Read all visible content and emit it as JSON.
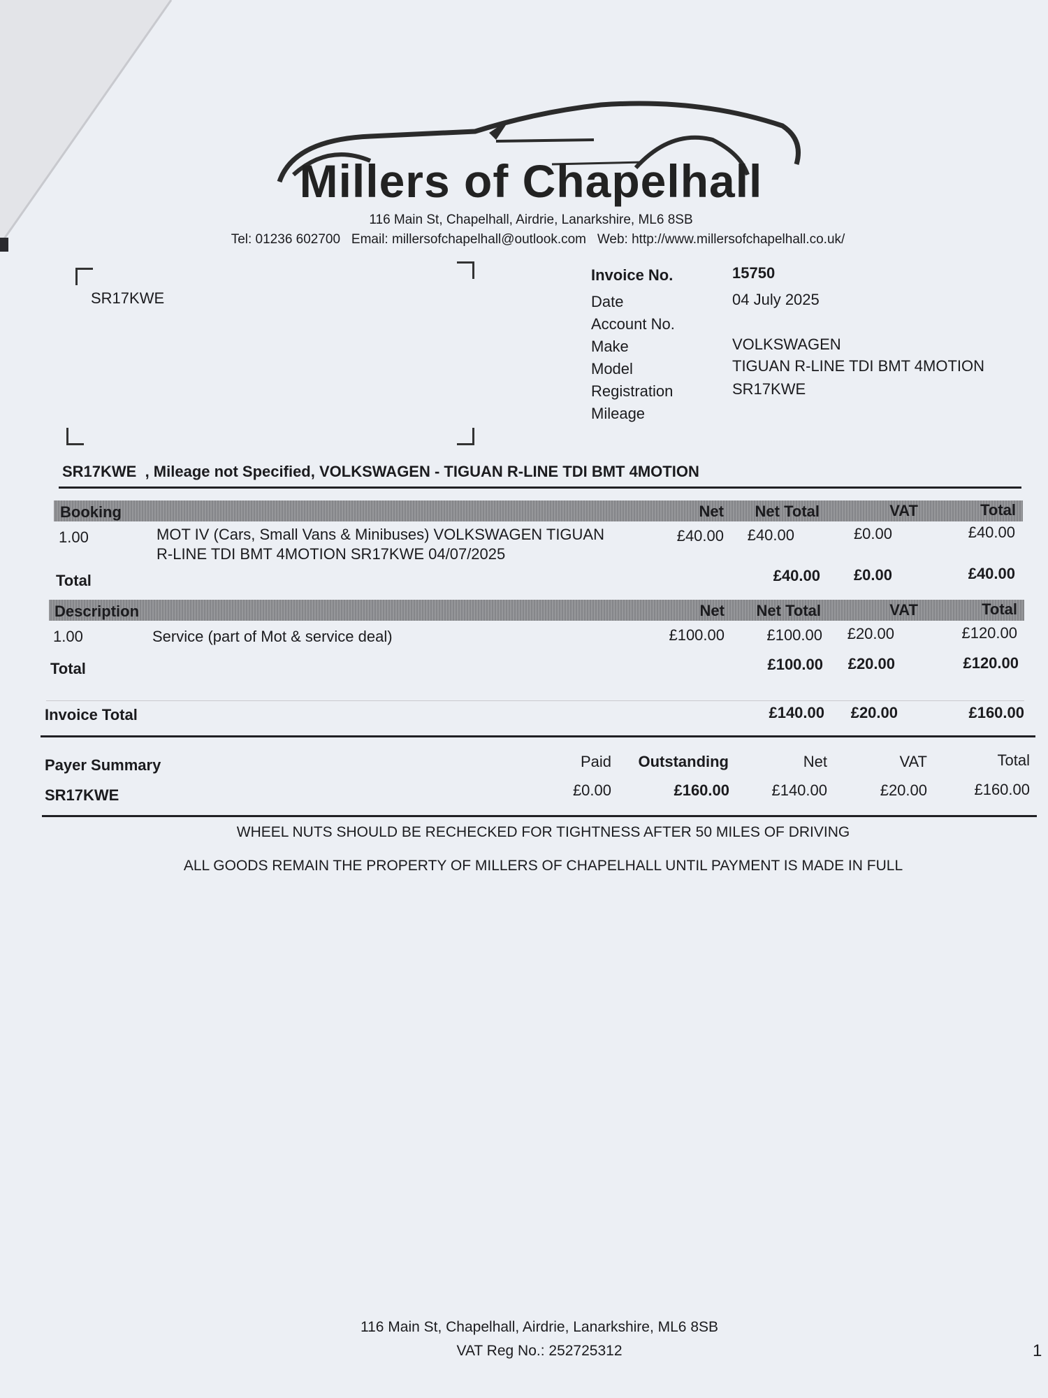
{
  "company": {
    "logo_text": "Millers of Chapelhall",
    "address": "116 Main St, Chapelhall, Airdrie, Lanarkshire, ML6 8SB",
    "contact": "Tel: 01236 602700   Email: millersofchapelhall@outlook.com   Web: http://www.millersofchapelhall.co.uk/"
  },
  "recipient": "SR17KWE",
  "details": [
    {
      "label": "Invoice No.",
      "value": "15750"
    },
    {
      "label": "Date",
      "value": "04 July 2025"
    },
    {
      "label": "Account No.",
      "value": ""
    },
    {
      "label": "Make",
      "value": "VOLKSWAGEN"
    },
    {
      "label": "Model",
      "value": "TIGUAN R-LINE TDI BMT 4MOTION"
    },
    {
      "label": "Registration",
      "value": "SR17KWE"
    },
    {
      "label": "Mileage",
      "value": ""
    }
  ],
  "vehicle_summary": "SR17KWE  , Mileage not Specified, VOLKSWAGEN - TIGUAN R-LINE TDI BMT 4MOTION",
  "booking": {
    "headers": [
      "Booking",
      "Net",
      "Net Total",
      "VAT",
      "Total"
    ],
    "row": {
      "qty": "1.00",
      "desc1": "MOT IV (Cars, Small Vans & Minibuses) VOLKSWAGEN TIGUAN",
      "desc2": "R-LINE TDI BMT 4MOTION SR17KWE 04/07/2025",
      "net": "£40.00",
      "net_total": "£40.00",
      "vat": "£0.00",
      "total": "£40.00"
    },
    "total": {
      "label": "Total",
      "net_total": "£40.00",
      "vat": "£0.00",
      "total": "£40.00"
    }
  },
  "description": {
    "headers": [
      "Description",
      "Net",
      "Net Total",
      "VAT",
      "Total"
    ],
    "row": {
      "qty": "1.00",
      "desc": "Service (part of Mot & service deal)",
      "net": "£100.00",
      "net_total": "£100.00",
      "vat": "£20.00",
      "total": "£120.00"
    },
    "total": {
      "label": "Total",
      "net_total": "£100.00",
      "vat": "£20.00",
      "total": "£120.00"
    }
  },
  "invoice_total": {
    "label": "Invoice Total",
    "net_total": "£140.00",
    "vat": "£20.00",
    "total": "£160.00"
  },
  "payer_summary": {
    "title": "Payer Summary",
    "headers": [
      "Paid",
      "Outstanding",
      "Net",
      "VAT",
      "Total"
    ],
    "payer": "SR17KWE",
    "values": [
      "£0.00",
      "£160.00",
      "£140.00",
      "£20.00",
      "£160.00"
    ]
  },
  "notes": [
    "WHEEL NUTS SHOULD BE RECHECKED FOR TIGHTNESS AFTER 50 MILES OF DRIVING",
    "ALL GOODS REMAIN THE PROPERTY OF MILLERS OF CHAPELHALL UNTIL PAYMENT IS MADE IN FULL"
  ],
  "footer": {
    "address": "116 Main St, Chapelhall, Airdrie, Lanarkshire, ML6 8SB",
    "vat_reg": "VAT Reg No.: 252725312",
    "page_number": "1"
  }
}
